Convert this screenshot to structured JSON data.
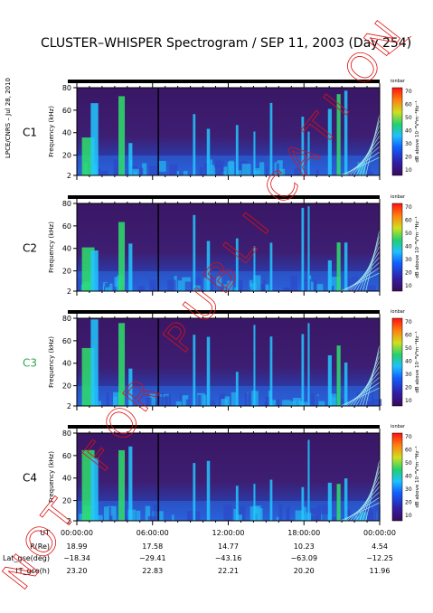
{
  "title": "CLUSTER–WHISPER Spectrogram / SEP 11, 2003 (Day 254)",
  "credit": "LPCE/CNRS – Jul 28, 2010",
  "watermark": "NOT FOR PUBLICATION",
  "colors": {
    "background": "#ffffff",
    "watermark": "#e01010",
    "c3_label": "#2fa84f",
    "spectrogram_base": "#3d1a63"
  },
  "chart_data": [
    {
      "type": "heatmap",
      "spacecraft": "C1",
      "ylabel": "Frequency (kHz)",
      "yticks": [
        2,
        20,
        40,
        60,
        80
      ],
      "ylim": [
        2,
        80
      ],
      "xlim_hours": [
        0,
        24
      ],
      "colorbar_label": "dB above 10⁻⁸V²m⁻²Hz⁻¹",
      "colorbar_ticks": [
        10,
        20,
        30,
        40,
        50,
        60,
        70
      ],
      "colorbar_tag": "ionbar"
    },
    {
      "type": "heatmap",
      "spacecraft": "C2",
      "ylabel": "Frequency (kHz)",
      "yticks": [
        2,
        20,
        40,
        60,
        80
      ],
      "ylim": [
        2,
        80
      ],
      "xlim_hours": [
        0,
        24
      ],
      "colorbar_label": "dB above 10⁻⁸V²m⁻²Hz⁻¹",
      "colorbar_ticks": [
        10,
        20,
        30,
        40,
        50,
        60,
        70
      ],
      "colorbar_tag": "ionbar"
    },
    {
      "type": "heatmap",
      "spacecraft": "C3",
      "ylabel": "Frequency (kHz)",
      "yticks": [
        2,
        20,
        40,
        60,
        80
      ],
      "ylim": [
        2,
        80
      ],
      "xlim_hours": [
        0,
        24
      ],
      "colorbar_label": "dB above 10⁻⁸V²m⁻²Hz⁻¹",
      "colorbar_ticks": [
        10,
        20,
        30,
        40,
        50,
        60,
        70
      ],
      "colorbar_tag": "ionbar"
    },
    {
      "type": "heatmap",
      "spacecraft": "C4",
      "ylabel": "Frequency (kHz)",
      "yticks": [
        2,
        20,
        40,
        60,
        80
      ],
      "ylim": [
        2,
        80
      ],
      "xlim_hours": [
        0,
        24
      ],
      "colorbar_label": "dB above 10⁻⁸V²m⁻²Hz⁻¹",
      "colorbar_ticks": [
        10,
        20,
        30,
        40,
        50,
        60,
        70
      ],
      "colorbar_tag": "ionbar"
    }
  ],
  "orbit_table": {
    "row_labels": [
      "UT",
      "R(Re)",
      "Lat_gse(deg)",
      "LT_gse(h)"
    ],
    "columns": [
      [
        "00:00:00",
        "18.99",
        "−18.34",
        "23.20"
      ],
      [
        "06:00:00",
        "17.58",
        "−29.41",
        "22.83"
      ],
      [
        "12:00:00",
        "14.77",
        "−43.16",
        "22.21"
      ],
      [
        "18:00:00",
        "10.23",
        "−63.09",
        "20.20"
      ],
      [
        "00:00:00",
        "4.54",
        "−12.25",
        "11.96"
      ]
    ]
  }
}
